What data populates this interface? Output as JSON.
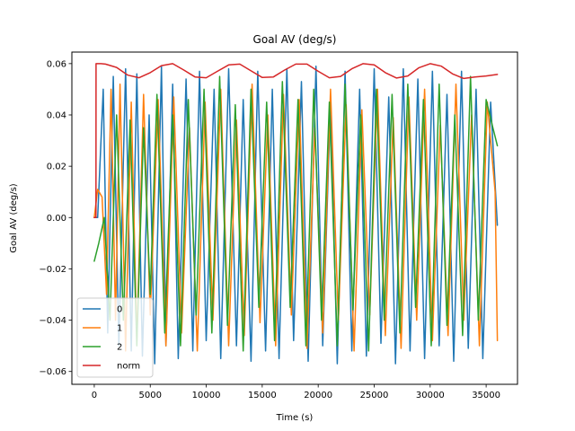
{
  "chart_data": {
    "type": "line",
    "title": "Goal AV (deg/s)",
    "xlabel": "Time (s)",
    "ylabel": "Goal AV (deg/s)",
    "xlim": [
      -2000,
      37800
    ],
    "ylim": [
      -0.065,
      0.0645
    ],
    "xticks": [
      0,
      5000,
      10000,
      15000,
      20000,
      25000,
      30000,
      35000
    ],
    "xtick_labels": [
      "0",
      "5000",
      "10000",
      "15000",
      "20000",
      "25000",
      "30000",
      "35000"
    ],
    "yticks": [
      -0.06,
      -0.04,
      -0.02,
      0.0,
      0.02,
      0.04,
      0.06
    ],
    "ytick_labels": [
      "−0.06",
      "−0.04",
      "−0.02",
      "0.00",
      "0.02",
      "0.04",
      "0.06"
    ],
    "grid": false,
    "legend_position": "lower-left",
    "series": [
      {
        "name": "0",
        "color": "#1f77b4",
        "x": [
          0,
          300,
          800,
          1200,
          1700,
          2200,
          2800,
          3300,
          3800,
          4300,
          4900,
          5400,
          6000,
          6400,
          7000,
          7500,
          8200,
          8800,
          9400,
          10000,
          10700,
          11300,
          12000,
          12700,
          13300,
          14000,
          14600,
          15300,
          15900,
          16500,
          17200,
          17800,
          18500,
          19100,
          19800,
          20400,
          21100,
          21700,
          22400,
          23000,
          23700,
          24300,
          25000,
          25600,
          26300,
          26900,
          27600,
          28200,
          28900,
          29500,
          30200,
          30800,
          31500,
          32100,
          32800,
          33400,
          34100,
          34700,
          35400,
          36000
        ],
        "y": [
          0.0,
          0.0,
          0.05,
          -0.045,
          0.055,
          -0.05,
          0.058,
          -0.052,
          0.056,
          -0.054,
          0.04,
          -0.057,
          0.059,
          -0.05,
          0.052,
          -0.055,
          0.054,
          -0.052,
          0.057,
          -0.048,
          0.05,
          -0.055,
          0.058,
          -0.05,
          0.046,
          -0.056,
          0.057,
          -0.052,
          0.05,
          -0.055,
          0.058,
          -0.048,
          0.053,
          -0.056,
          0.059,
          -0.05,
          0.045,
          -0.057,
          0.057,
          -0.052,
          0.05,
          -0.054,
          0.058,
          -0.049,
          0.047,
          -0.057,
          0.058,
          -0.052,
          0.054,
          -0.055,
          0.057,
          -0.05,
          0.048,
          -0.056,
          0.057,
          -0.051,
          0.05,
          -0.055,
          0.045,
          -0.003
        ]
      },
      {
        "name": "1",
        "color": "#ff7f0e",
        "x": [
          0,
          300,
          700,
          1100,
          1500,
          1900,
          2300,
          2800,
          3300,
          3800,
          4400,
          5000,
          5700,
          6400,
          7100,
          7800,
          8500,
          9200,
          9900,
          10600,
          11300,
          12000,
          12700,
          13400,
          14100,
          14800,
          15500,
          16200,
          16900,
          17600,
          18300,
          19000,
          19700,
          20400,
          21100,
          21800,
          22500,
          23200,
          23900,
          24600,
          25300,
          26000,
          26700,
          27400,
          28100,
          28800,
          29500,
          30200,
          30900,
          31600,
          32300,
          33000,
          33700,
          34400,
          35100,
          35800,
          36000
        ],
        "y": [
          0.0,
          0.011,
          0.008,
          -0.03,
          0.05,
          -0.04,
          0.052,
          -0.052,
          0.045,
          -0.048,
          0.048,
          -0.038,
          0.046,
          -0.05,
          0.047,
          -0.045,
          0.035,
          -0.052,
          0.045,
          -0.04,
          0.05,
          -0.05,
          0.038,
          -0.046,
          0.052,
          -0.041,
          0.04,
          -0.05,
          0.048,
          -0.038,
          0.046,
          -0.051,
          0.035,
          -0.045,
          0.05,
          -0.04,
          0.044,
          -0.052,
          0.042,
          -0.038,
          0.05,
          -0.046,
          0.039,
          -0.051,
          0.047,
          -0.04,
          0.05,
          -0.048,
          0.036,
          -0.046,
          0.052,
          -0.04,
          0.04,
          -0.05,
          0.045,
          0.01,
          -0.048
        ]
      },
      {
        "name": "2",
        "color": "#2ca02c",
        "x": [
          0,
          400,
          900,
          1400,
          2000,
          2600,
          3200,
          3800,
          4400,
          5000,
          5600,
          6300,
          7000,
          7700,
          8400,
          9100,
          9800,
          10500,
          11200,
          11900,
          12600,
          13300,
          14000,
          14700,
          15400,
          16100,
          16800,
          17500,
          18200,
          18900,
          19600,
          20300,
          21000,
          21700,
          22400,
          23100,
          23800,
          24500,
          25200,
          25900,
          26600,
          27300,
          28000,
          28700,
          29400,
          30100,
          30800,
          31500,
          32200,
          32900,
          33600,
          34300,
          35000,
          35600,
          36000
        ],
        "y": [
          -0.017,
          -0.01,
          0.0,
          -0.04,
          0.04,
          -0.04,
          0.038,
          -0.05,
          0.035,
          -0.03,
          0.048,
          -0.045,
          0.04,
          -0.05,
          0.046,
          -0.038,
          0.05,
          -0.045,
          0.055,
          -0.042,
          0.044,
          -0.052,
          0.05,
          -0.035,
          0.045,
          -0.048,
          0.053,
          -0.035,
          0.046,
          -0.05,
          0.05,
          -0.04,
          0.045,
          -0.05,
          0.052,
          -0.036,
          0.04,
          -0.052,
          0.05,
          -0.04,
          0.048,
          -0.045,
          0.052,
          -0.035,
          0.046,
          -0.05,
          0.052,
          -0.042,
          0.04,
          -0.046,
          0.055,
          -0.04,
          0.046,
          0.035,
          0.028
        ]
      },
      {
        "name": "norm",
        "color": "#d62728",
        "x": [
          0,
          150,
          155,
          600,
          1000,
          2000,
          3000,
          4000,
          5000,
          6000,
          7000,
          8000,
          9000,
          10000,
          11000,
          12000,
          13000,
          14000,
          15000,
          16000,
          17000,
          18000,
          19000,
          20000,
          21000,
          22000,
          23000,
          24000,
          25000,
          26000,
          27000,
          28000,
          29000,
          30000,
          31000,
          32000,
          33000,
          34000,
          35000,
          36000
        ],
        "y": [
          0.0,
          0.0,
          0.06,
          0.06,
          0.0598,
          0.0585,
          0.0555,
          0.0545,
          0.0565,
          0.0592,
          0.06,
          0.0575,
          0.0548,
          0.0545,
          0.057,
          0.0595,
          0.0598,
          0.0572,
          0.0546,
          0.0548,
          0.0575,
          0.0598,
          0.0598,
          0.057,
          0.0545,
          0.055,
          0.058,
          0.06,
          0.0595,
          0.0565,
          0.0544,
          0.0552,
          0.0584,
          0.06,
          0.059,
          0.056,
          0.0542,
          0.0548,
          0.0552,
          0.0558
        ]
      }
    ]
  }
}
